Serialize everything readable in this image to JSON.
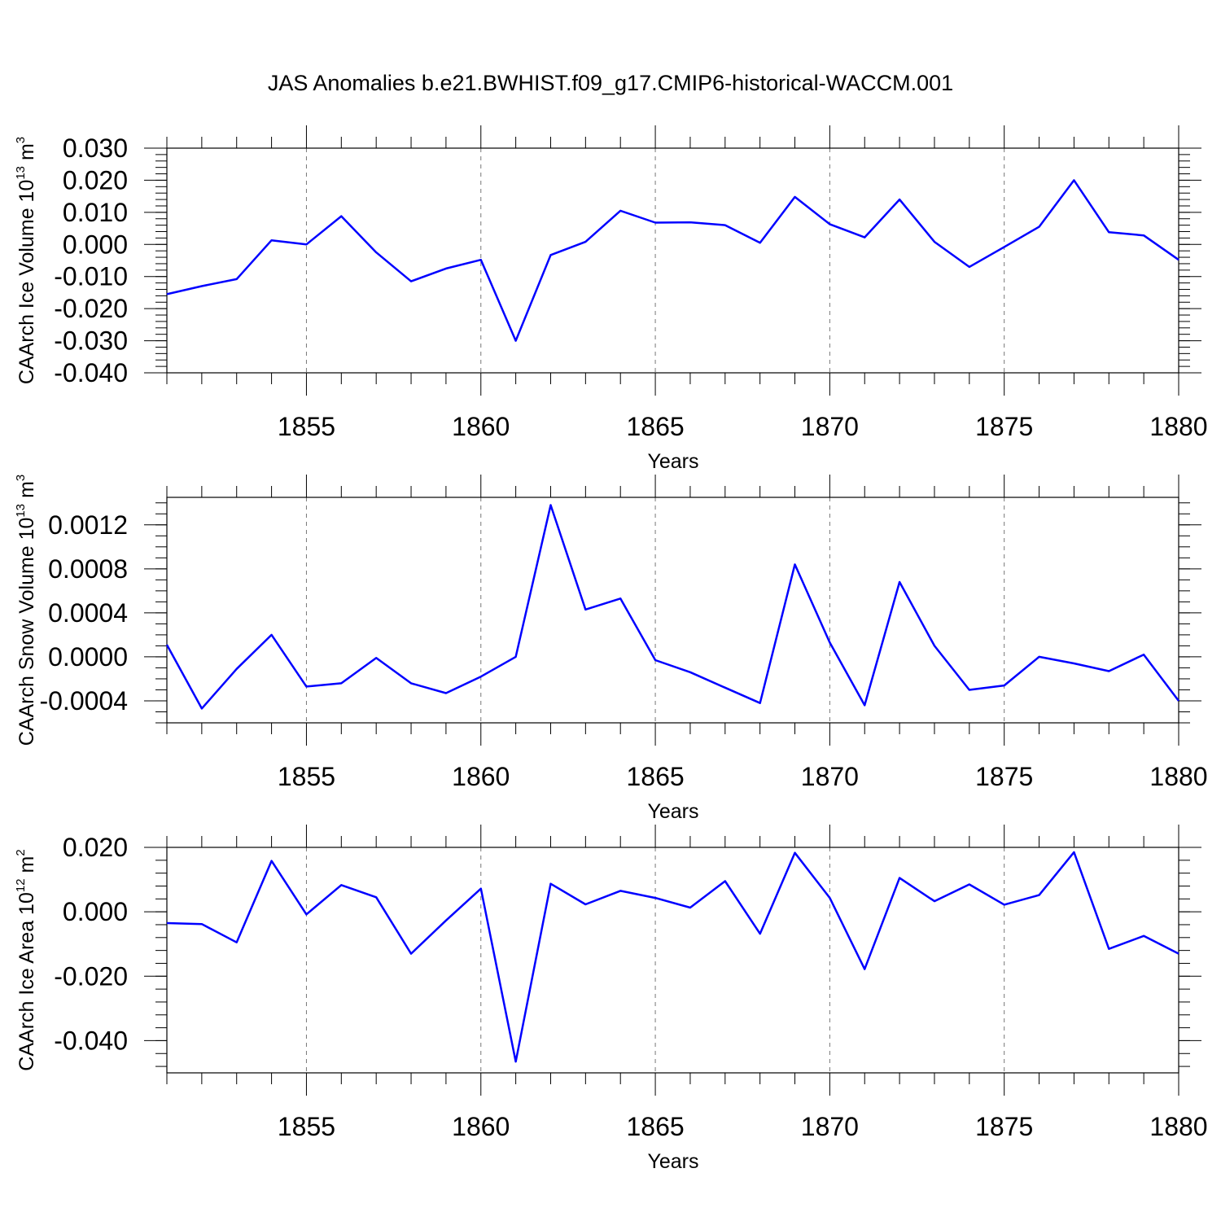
{
  "figure": {
    "title": "JAS Anomalies b.e21.BWHIST.f09_g17.CMIP6-historical-WACCM.001"
  },
  "chart_data": [
    {
      "type": "line",
      "ylabel": "CAArch Ice Volume 10",
      "ylabel_exponent": "13",
      "ylabel_unit": " m",
      "ylabel_unit_exponent": "3",
      "xlabel": "Years",
      "xlim": [
        1851,
        1880
      ],
      "ylim": [
        -0.04,
        0.03
      ],
      "x_ticks": [
        1855,
        1860,
        1865,
        1870,
        1875,
        1880
      ],
      "x_tick_labels": [
        "1855",
        "1860",
        "1865",
        "1870",
        "1875",
        "1880"
      ],
      "y_ticks": [
        -0.04,
        -0.03,
        -0.02,
        -0.01,
        0.0,
        0.01,
        0.02,
        0.03
      ],
      "y_tick_labels": [
        "-0.040",
        "-0.030",
        "-0.020",
        "-0.010",
        "0.000",
        "0.010",
        "0.020",
        "0.030"
      ],
      "y_minor_step": 0.002,
      "grid": "vertical dashed at major x ticks",
      "line_color": "#0000ff",
      "x": [
        1851,
        1852,
        1853,
        1854,
        1855,
        1856,
        1857,
        1858,
        1859,
        1860,
        1861,
        1862,
        1863,
        1864,
        1865,
        1866,
        1867,
        1868,
        1869,
        1870,
        1871,
        1872,
        1873,
        1874,
        1875,
        1876,
        1877,
        1878,
        1879,
        1880
      ],
      "values": [
        -0.0155,
        -0.013,
        -0.0108,
        0.0013,
        0.0,
        0.0088,
        -0.0025,
        -0.0115,
        -0.0075,
        -0.0048,
        -0.03,
        -0.0033,
        0.0008,
        0.0105,
        0.0068,
        0.0069,
        0.006,
        0.0005,
        0.0148,
        0.0063,
        0.0022,
        0.014,
        0.0008,
        -0.007,
        -0.0008,
        0.0055,
        0.02,
        0.0038,
        0.0028,
        -0.0048
      ]
    },
    {
      "type": "line",
      "ylabel": "CAArch Snow Volume 10",
      "ylabel_exponent": "13",
      "ylabel_unit": " m",
      "ylabel_unit_exponent": "3",
      "xlabel": "Years",
      "xlim": [
        1851,
        1880
      ],
      "ylim": [
        -0.0006,
        0.00145
      ],
      "x_ticks": [
        1855,
        1860,
        1865,
        1870,
        1875,
        1880
      ],
      "x_tick_labels": [
        "1855",
        "1860",
        "1865",
        "1870",
        "1875",
        "1880"
      ],
      "y_ticks": [
        -0.0004,
        0.0,
        0.0004,
        0.0008,
        0.0012
      ],
      "y_tick_labels": [
        "-0.0004",
        "0.0000",
        "0.0004",
        "0.0008",
        "0.0012"
      ],
      "y_minor_step": 0.0001,
      "grid": "vertical dashed at major x ticks",
      "line_color": "#0000ff",
      "x": [
        1851,
        1852,
        1853,
        1854,
        1855,
        1856,
        1857,
        1858,
        1859,
        1860,
        1861,
        1862,
        1863,
        1864,
        1865,
        1866,
        1867,
        1868,
        1869,
        1870,
        1871,
        1872,
        1873,
        1874,
        1875,
        1876,
        1877,
        1878,
        1879,
        1880
      ],
      "values": [
        0.00011,
        -0.00047,
        -0.00011,
        0.0002,
        -0.00027,
        -0.00024,
        -1e-05,
        -0.00024,
        -0.00033,
        -0.00018,
        0.0,
        0.00138,
        0.00043,
        0.00053,
        -3e-05,
        -0.00014,
        -0.00028,
        -0.00042,
        0.00084,
        0.00013,
        -0.00044,
        0.00068,
        0.0001,
        -0.0003,
        -0.00026,
        0.0,
        -6e-05,
        -0.00013,
        2e-05,
        -0.0004
      ]
    },
    {
      "type": "line",
      "ylabel": "CAArch Ice Area 10",
      "ylabel_exponent": "12",
      "ylabel_unit": " m",
      "ylabel_unit_exponent": "2",
      "xlabel": "Years",
      "xlim": [
        1851,
        1880
      ],
      "ylim": [
        -0.05,
        0.02
      ],
      "x_ticks": [
        1855,
        1860,
        1865,
        1870,
        1875,
        1880
      ],
      "x_tick_labels": [
        "1855",
        "1860",
        "1865",
        "1870",
        "1875",
        "1880"
      ],
      "y_ticks": [
        -0.04,
        -0.02,
        0.0,
        0.02
      ],
      "y_tick_labels": [
        "-0.040",
        "-0.020",
        "0.000",
        "0.020"
      ],
      "y_minor_step": 0.004,
      "grid": "vertical dashed at major x ticks",
      "line_color": "#0000ff",
      "x": [
        1851,
        1852,
        1853,
        1854,
        1855,
        1856,
        1857,
        1858,
        1859,
        1860,
        1861,
        1862,
        1863,
        1864,
        1865,
        1866,
        1867,
        1868,
        1869,
        1870,
        1871,
        1872,
        1873,
        1874,
        1875,
        1876,
        1877,
        1878,
        1879,
        1880
      ],
      "values": [
        -0.0035,
        -0.0038,
        -0.0095,
        0.0158,
        -0.0008,
        0.0083,
        0.0045,
        -0.013,
        -0.0027,
        0.0072,
        -0.0465,
        0.0087,
        0.0023,
        0.0065,
        0.0043,
        0.0013,
        0.0095,
        -0.0068,
        0.0183,
        0.0043,
        -0.0178,
        0.0105,
        0.0033,
        0.0085,
        0.0022,
        0.0052,
        0.0185,
        -0.0115,
        -0.0075,
        -0.013
      ]
    }
  ]
}
